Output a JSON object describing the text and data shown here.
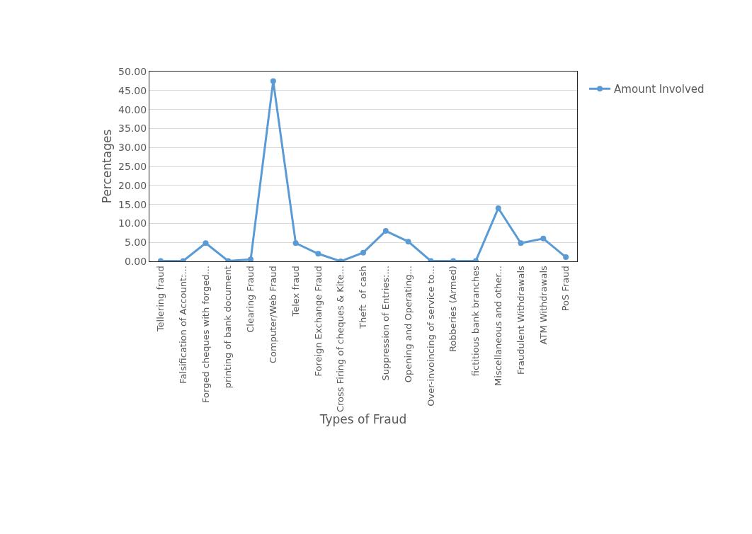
{
  "chart_data": {
    "type": "line",
    "xlabel": "Types of Fraud",
    "ylabel": "Percentages",
    "categories": [
      "Tellering fraud",
      "Falsification of Account:...",
      "Forged cheques with forged...",
      "printing of bank document",
      "Clearing Fraud",
      "Computer/Web Fraud",
      "Telex fraud",
      "Foreign Exchange Fraud",
      "Cross Firing of cheques & Kite...",
      "Theft  of cash",
      "Suppression of Entries:...",
      "Opening and Operating...",
      "Over-invoincing of service to...",
      "Robberies (Armed)",
      "fictitious bank branches",
      "Miscellaneous and other...",
      "Fraudulent Withdrawals",
      "ATM Withdrawals",
      "PoS Fraud"
    ],
    "series": [
      {
        "name": "Amount Involved",
        "color": "#5b9bd5",
        "values": [
          0.1,
          0.1,
          4.8,
          0.1,
          0.5,
          47.5,
          4.8,
          2.0,
          0.0,
          2.3,
          8.0,
          5.2,
          0.1,
          0.1,
          0.1,
          14.0,
          4.8,
          6.0,
          1.1
        ]
      }
    ],
    "ylim": [
      0,
      50
    ],
    "yticks": [
      {
        "value": 0,
        "label": "0.00"
      },
      {
        "value": 5,
        "label": "5.00"
      },
      {
        "value": 10,
        "label": "10.00"
      },
      {
        "value": 15,
        "label": "15.00"
      },
      {
        "value": 20,
        "label": "20.00"
      },
      {
        "value": 25,
        "label": "25.00"
      },
      {
        "value": 30,
        "label": "30.00"
      },
      {
        "value": 35,
        "label": "35.00"
      },
      {
        "value": 40,
        "label": "40.00"
      },
      {
        "value": 45,
        "label": "45.00"
      },
      {
        "value": 50,
        "label": "50.00"
      }
    ],
    "grid": "y",
    "legend": "right",
    "marker": "circle",
    "line_style": "solid"
  }
}
